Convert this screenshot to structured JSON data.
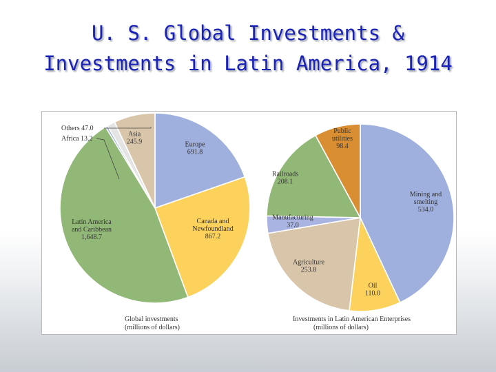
{
  "page": {
    "title_line1": "U. S. Global Investments &",
    "title_line2": "Investments in Latin America, 1914"
  },
  "chart_data": [
    {
      "type": "pie",
      "caption_line1": "Global investments",
      "caption_line2": "(millions of dollars)",
      "slices": [
        {
          "name": "Europe",
          "value": 691.8,
          "label_lines": [
            "Europe"
          ],
          "value_label": "691.8",
          "color": "#9fb0de"
        },
        {
          "name": "Canada and Newfoundland",
          "value": 867.2,
          "label_lines": [
            "Canada and",
            "Newfoundland"
          ],
          "value_label": "867.2",
          "color": "#fcd25c"
        },
        {
          "name": "Latin America and Caribbean",
          "value": 1648.7,
          "label_lines": [
            "Latin America",
            "and Caribbean"
          ],
          "value_label": "1,648.7",
          "color": "#92b877"
        },
        {
          "name": "Africa",
          "value": 13.2,
          "label_lines": [
            "Africa"
          ],
          "value_label": "13.2",
          "color": "#9ab0d8"
        },
        {
          "name": "Others",
          "value": 47.0,
          "label_lines": [
            "Others"
          ],
          "value_label": "47.0",
          "color": "#e4e4e4"
        },
        {
          "name": "Asia",
          "value": 245.9,
          "label_lines": [
            "Asia"
          ],
          "value_label": "245.9",
          "color": "#d9c6aa"
        }
      ]
    },
    {
      "type": "pie",
      "caption_line1": "Investments in Latin American Enterprises",
      "caption_line2": "(millions of dollars)",
      "slices": [
        {
          "name": "Mining and smelting",
          "value": 534.0,
          "label_lines": [
            "Mining and",
            "smelting"
          ],
          "value_label": "534.0",
          "color": "#9fb0de"
        },
        {
          "name": "Oil",
          "value": 110.0,
          "label_lines": [
            "Oil"
          ],
          "value_label": "110.0",
          "color": "#fcd25c"
        },
        {
          "name": "Agriculture",
          "value": 253.8,
          "label_lines": [
            "Agriculture"
          ],
          "value_label": "253.8",
          "color": "#d9c6aa"
        },
        {
          "name": "Manufacturing",
          "value": 37.0,
          "label_lines": [
            "Manufacturing"
          ],
          "value_label": "37.0",
          "color": "#aab4e2"
        },
        {
          "name": "Railroads",
          "value": 208.1,
          "label_lines": [
            "Railroads"
          ],
          "value_label": "208.1",
          "color": "#92b877"
        },
        {
          "name": "Public utilities",
          "value": 98.4,
          "label_lines": [
            "Public",
            "utilities"
          ],
          "value_label": "98.4",
          "color": "#d88e31"
        }
      ]
    }
  ]
}
